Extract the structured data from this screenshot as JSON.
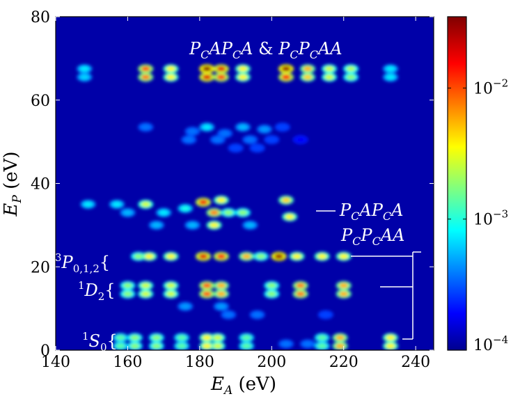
{
  "chart_data": {
    "type": "heatmap",
    "xlabel": "E_A (eV)",
    "ylabel": "E_P (eV)",
    "xlim": [
      140,
      245
    ],
    "ylim": [
      0,
      80
    ],
    "x_ticks": [
      "140",
      "160",
      "180",
      "200",
      "220",
      "240"
    ],
    "y_ticks": [
      "0",
      "20",
      "40",
      "60",
      "80"
    ],
    "colorbar": {
      "scale": "log",
      "range": [
        0.0001,
        0.035
      ],
      "ticks": [
        {
          "base": "10",
          "exp": "−4",
          "value": 0.0001
        },
        {
          "base": "10",
          "exp": "−3",
          "value": 0.001
        },
        {
          "base": "10",
          "exp": "−2",
          "value": 0.01
        }
      ]
    },
    "spots": [
      {
        "x": 148,
        "y": 67.5,
        "v": 0.0008
      },
      {
        "x": 165,
        "y": 67.5,
        "v": 0.01
      },
      {
        "x": 172,
        "y": 67.5,
        "v": 0.004
      },
      {
        "x": 182,
        "y": 67.5,
        "v": 0.033
      },
      {
        "x": 186,
        "y": 67.5,
        "v": 0.02
      },
      {
        "x": 192,
        "y": 67.5,
        "v": 0.004
      },
      {
        "x": 204,
        "y": 67.5,
        "v": 0.03
      },
      {
        "x": 210,
        "y": 67.5,
        "v": 0.006
      },
      {
        "x": 216,
        "y": 67.5,
        "v": 0.003
      },
      {
        "x": 222,
        "y": 67.5,
        "v": 0.0025
      },
      {
        "x": 233,
        "y": 67.5,
        "v": 0.0008
      },
      {
        "x": 148,
        "y": 65.5,
        "v": 0.0007
      },
      {
        "x": 165,
        "y": 65.5,
        "v": 0.008
      },
      {
        "x": 172,
        "y": 65.5,
        "v": 0.004
      },
      {
        "x": 182,
        "y": 65.5,
        "v": 0.02
      },
      {
        "x": 186,
        "y": 65.5,
        "v": 0.012
      },
      {
        "x": 192,
        "y": 65.5,
        "v": 0.004
      },
      {
        "x": 204,
        "y": 65.5,
        "v": 0.015
      },
      {
        "x": 210,
        "y": 65.5,
        "v": 0.005
      },
      {
        "x": 216,
        "y": 65.5,
        "v": 0.003
      },
      {
        "x": 222,
        "y": 65.5,
        "v": 0.002
      },
      {
        "x": 233,
        "y": 65.5,
        "v": 0.0008
      },
      {
        "x": 165,
        "y": 53.5,
        "v": 0.0004
      },
      {
        "x": 178,
        "y": 52.5,
        "v": 0.0004
      },
      {
        "x": 182,
        "y": 53.5,
        "v": 0.0008
      },
      {
        "x": 187,
        "y": 52,
        "v": 0.0004
      },
      {
        "x": 192,
        "y": 53.5,
        "v": 0.0006
      },
      {
        "x": 198,
        "y": 53,
        "v": 0.0005
      },
      {
        "x": 203,
        "y": 53.5,
        "v": 0.0003
      },
      {
        "x": 177,
        "y": 50.5,
        "v": 0.0004
      },
      {
        "x": 185,
        "y": 50.5,
        "v": 0.0004
      },
      {
        "x": 194,
        "y": 50.5,
        "v": 0.0004
      },
      {
        "x": 200,
        "y": 50.5,
        "v": 0.0003
      },
      {
        "x": 208,
        "y": 50.5,
        "v": 0.0002
      },
      {
        "x": 190,
        "y": 48.5,
        "v": 0.0003
      },
      {
        "x": 196,
        "y": 48.5,
        "v": 0.0003
      },
      {
        "x": 149,
        "y": 35,
        "v": 0.0008
      },
      {
        "x": 157,
        "y": 35,
        "v": 0.0008
      },
      {
        "x": 160,
        "y": 33,
        "v": 0.0006
      },
      {
        "x": 165,
        "y": 35,
        "v": 0.003
      },
      {
        "x": 170,
        "y": 33,
        "v": 0.0008
      },
      {
        "x": 176,
        "y": 34,
        "v": 0.001
      },
      {
        "x": 181,
        "y": 35.5,
        "v": 0.018
      },
      {
        "x": 184,
        "y": 33,
        "v": 0.008
      },
      {
        "x": 186,
        "y": 36,
        "v": 0.004
      },
      {
        "x": 184,
        "y": 30,
        "v": 0.004
      },
      {
        "x": 188,
        "y": 33,
        "v": 0.002
      },
      {
        "x": 192,
        "y": 33,
        "v": 0.002
      },
      {
        "x": 204,
        "y": 36,
        "v": 0.005
      },
      {
        "x": 205,
        "y": 32,
        "v": 0.004
      },
      {
        "x": 168,
        "y": 30,
        "v": 0.0006
      },
      {
        "x": 178,
        "y": 30,
        "v": 0.0006
      },
      {
        "x": 194,
        "y": 30,
        "v": 0.0006
      },
      {
        "x": 163,
        "y": 22.5,
        "v": 0.002
      },
      {
        "x": 166,
        "y": 22.5,
        "v": 0.004
      },
      {
        "x": 172,
        "y": 22.5,
        "v": 0.004
      },
      {
        "x": 181,
        "y": 22.5,
        "v": 0.02
      },
      {
        "x": 186,
        "y": 22.5,
        "v": 0.015
      },
      {
        "x": 193,
        "y": 22.5,
        "v": 0.006
      },
      {
        "x": 197,
        "y": 22.5,
        "v": 0.002
      },
      {
        "x": 202,
        "y": 22.5,
        "v": 0.03
      },
      {
        "x": 207,
        "y": 22.5,
        "v": 0.004
      },
      {
        "x": 214,
        "y": 22.5,
        "v": 0.004
      },
      {
        "x": 220,
        "y": 22.5,
        "v": 0.004
      },
      {
        "x": 160,
        "y": 15.5,
        "v": 0.002
      },
      {
        "x": 165,
        "y": 15.5,
        "v": 0.003
      },
      {
        "x": 172,
        "y": 15.5,
        "v": 0.003
      },
      {
        "x": 182,
        "y": 15.5,
        "v": 0.01
      },
      {
        "x": 186,
        "y": 15.5,
        "v": 0.006
      },
      {
        "x": 200,
        "y": 15.5,
        "v": 0.002
      },
      {
        "x": 208,
        "y": 15.5,
        "v": 0.008
      },
      {
        "x": 220,
        "y": 15.5,
        "v": 0.006
      },
      {
        "x": 160,
        "y": 13.5,
        "v": 0.002
      },
      {
        "x": 165,
        "y": 13.5,
        "v": 0.003
      },
      {
        "x": 172,
        "y": 13.5,
        "v": 0.003
      },
      {
        "x": 182,
        "y": 13.5,
        "v": 0.01
      },
      {
        "x": 186,
        "y": 13.5,
        "v": 0.006
      },
      {
        "x": 200,
        "y": 13.5,
        "v": 0.002
      },
      {
        "x": 208,
        "y": 13.5,
        "v": 0.008
      },
      {
        "x": 220,
        "y": 13.5,
        "v": 0.006
      },
      {
        "x": 176,
        "y": 10.5,
        "v": 0.0005
      },
      {
        "x": 186,
        "y": 10.5,
        "v": 0.0005
      },
      {
        "x": 196,
        "y": 8.5,
        "v": 0.0004
      },
      {
        "x": 188,
        "y": 8.5,
        "v": 0.0004
      },
      {
        "x": 215,
        "y": 8.5,
        "v": 0.0003
      },
      {
        "x": 158,
        "y": 3,
        "v": 0.0015
      },
      {
        "x": 162,
        "y": 3,
        "v": 0.002
      },
      {
        "x": 168,
        "y": 3,
        "v": 0.002
      },
      {
        "x": 175,
        "y": 3,
        "v": 0.0015
      },
      {
        "x": 182,
        "y": 3,
        "v": 0.004
      },
      {
        "x": 185,
        "y": 3,
        "v": 0.003
      },
      {
        "x": 193,
        "y": 3,
        "v": 0.0015
      },
      {
        "x": 214,
        "y": 3,
        "v": 0.0015
      },
      {
        "x": 219,
        "y": 3,
        "v": 0.006
      },
      {
        "x": 233,
        "y": 3,
        "v": 0.004
      },
      {
        "x": 158,
        "y": 1,
        "v": 0.0015
      },
      {
        "x": 162,
        "y": 1,
        "v": 0.002
      },
      {
        "x": 168,
        "y": 1,
        "v": 0.002
      },
      {
        "x": 175,
        "y": 1,
        "v": 0.0015
      },
      {
        "x": 182,
        "y": 1,
        "v": 0.004
      },
      {
        "x": 185,
        "y": 1,
        "v": 0.003
      },
      {
        "x": 193,
        "y": 1,
        "v": 0.0015
      },
      {
        "x": 214,
        "y": 1,
        "v": 0.0015
      },
      {
        "x": 219,
        "y": 1,
        "v": 0.006
      },
      {
        "x": 233,
        "y": 1,
        "v": 0.004
      },
      {
        "x": 204,
        "y": 1.5,
        "v": 0.0004
      },
      {
        "x": 210,
        "y": 1.5,
        "v": 0.0004
      }
    ],
    "annotations": {
      "top": {
        "p1": "P",
        "s1": "C",
        "a1": "A",
        "p2": "P",
        "s2": "C",
        "a2": "A",
        "amp": "&",
        "p3": "P",
        "s3": "C",
        "p4": "P",
        "s4": "C",
        "a3": "AA"
      },
      "mid1": {
        "p1": "P",
        "s1": "C",
        "a1": "A",
        "p2": "P",
        "s2": "C",
        "a2": "A"
      },
      "mid2": {
        "p1": "P",
        "s1": "C",
        "p2": "P",
        "s2": "C",
        "a": "AA"
      },
      "state1": {
        "sup": "3",
        "letter": "P",
        "sub": "0,1,2"
      },
      "state2": {
        "sup": "1",
        "letter": "D",
        "sub": "2"
      },
      "state3": {
        "sup": "1",
        "letter": "S",
        "sub": "0"
      }
    }
  }
}
